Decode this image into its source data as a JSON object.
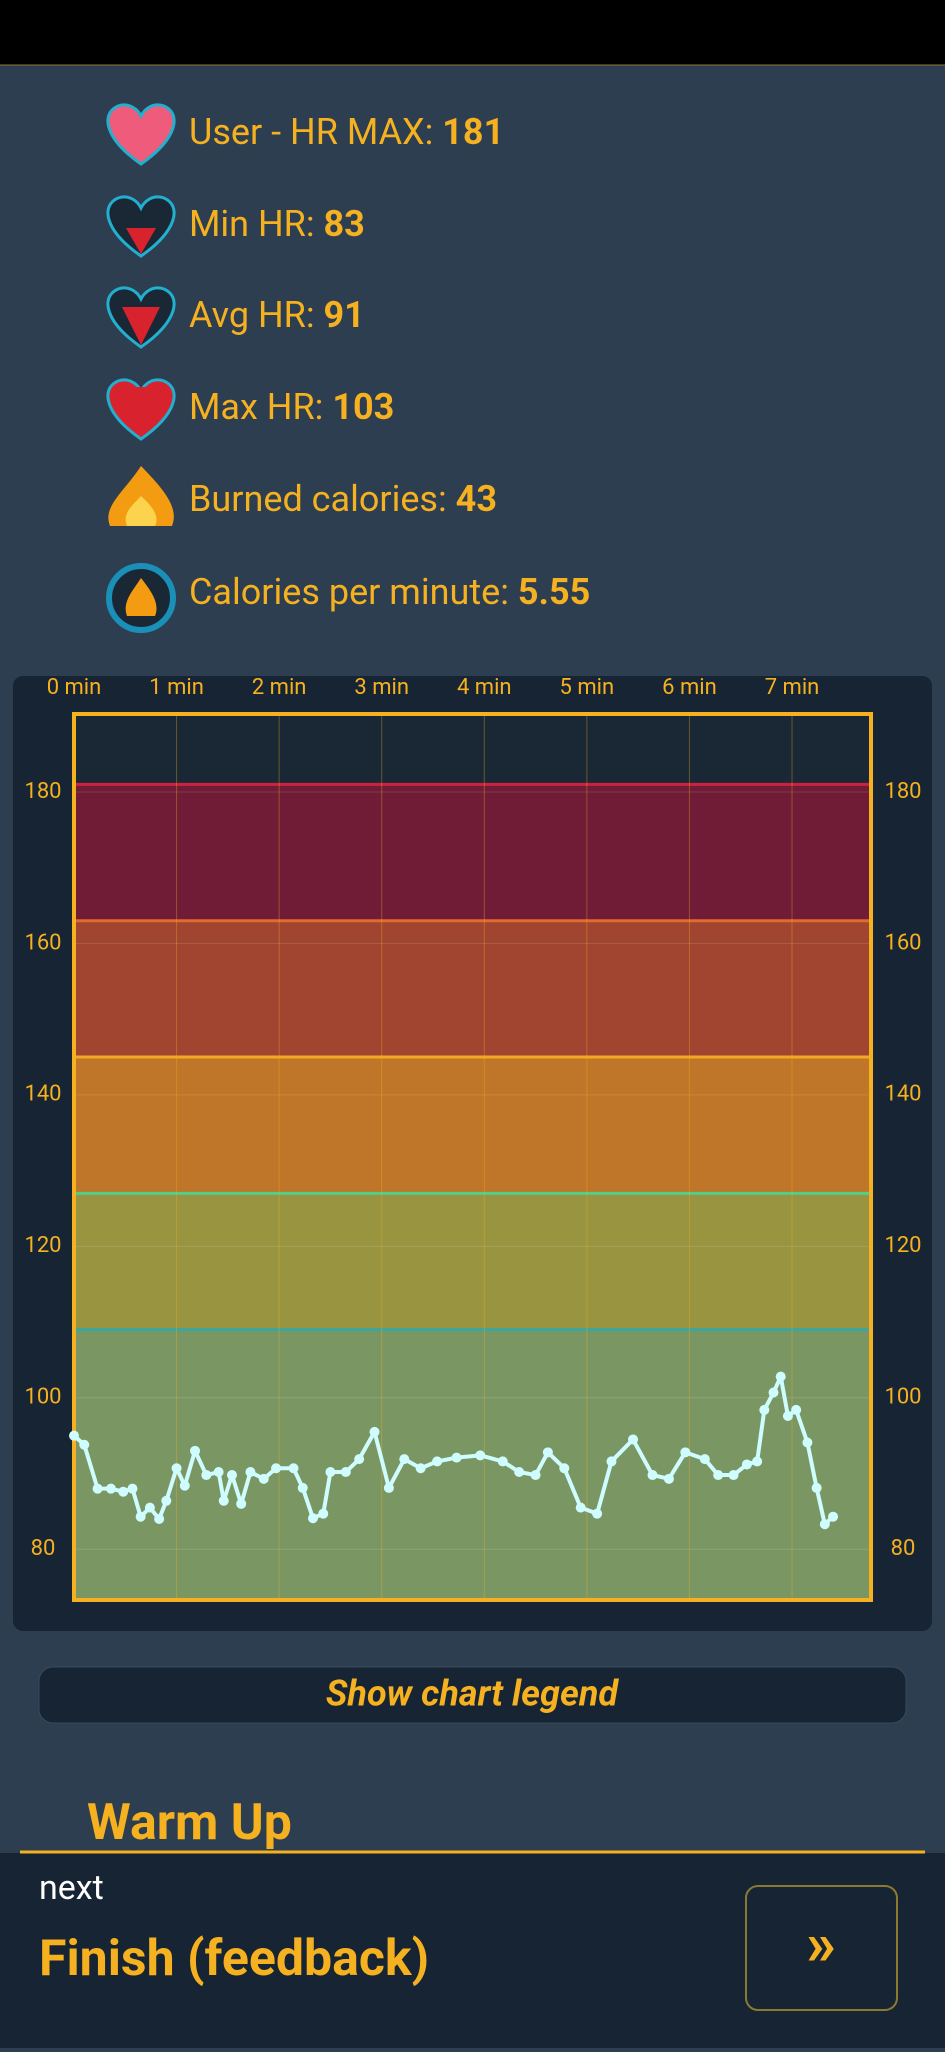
{
  "stats": [
    {
      "label": "User - HR MAX:",
      "value": "181"
    },
    {
      "label": "Min HR:",
      "value": "83"
    },
    {
      "label": "Avg HR:",
      "value": "91"
    },
    {
      "label": "Max HR:",
      "value": "103"
    },
    {
      "label": "Burned calories:",
      "value": "43"
    },
    {
      "label": "Calories per minute:",
      "value": "5.55"
    }
  ],
  "chart_data": {
    "type": "line",
    "xlim": [
      0,
      7.77
    ],
    "xticks": [
      {
        "value": 0,
        "label": "0 min"
      },
      {
        "value": 1,
        "label": "1 min"
      },
      {
        "value": 2,
        "label": "2 min"
      },
      {
        "value": 3,
        "label": "3 min"
      },
      {
        "value": 4,
        "label": "4 min"
      },
      {
        "value": 5,
        "label": "5 min"
      },
      {
        "value": 6,
        "label": "6 min"
      },
      {
        "value": 7,
        "label": "7 min"
      }
    ],
    "ylim": [
      73.3,
      190.3
    ],
    "yticks": [
      80,
      100,
      120,
      140,
      160,
      180
    ],
    "grid": true,
    "zone_bounds": [
      109,
      127,
      145,
      163,
      181
    ],
    "zone_colors": [
      "#7a9763",
      "#999440",
      "#bf7628",
      "#a14530",
      "#701c36",
      "#1a2836"
    ],
    "zone_line_colors": [
      "#3aa6a0",
      "#4fd08a",
      "#f5a623",
      "#e06a30",
      "#d02040"
    ],
    "series": [
      {
        "color": "#cffcff",
        "x": [
          0,
          0.1,
          0.23,
          0.36,
          0.48,
          0.57,
          0.65,
          0.74,
          0.83,
          0.9,
          1.0,
          1.08,
          1.18,
          1.29,
          1.41,
          1.46,
          1.54,
          1.63,
          1.72,
          1.85,
          1.97,
          2.14,
          2.23,
          2.33,
          2.43,
          2.5,
          2.65,
          2.78,
          2.93,
          3.07,
          3.22,
          3.38,
          3.54,
          3.73,
          3.96,
          4.18,
          4.34,
          4.5,
          4.62,
          4.78,
          4.94,
          5.1,
          5.24,
          5.45,
          5.64,
          5.8,
          5.96,
          6.15,
          6.28,
          6.43,
          6.56,
          6.66,
          6.73,
          6.82,
          6.89,
          6.96,
          7.04,
          7.15,
          7.24,
          7.32,
          7.4
        ],
        "values": [
          95,
          93.8,
          88,
          88,
          87.6,
          88,
          84.3,
          85.5,
          84,
          86.4,
          90.7,
          88.4,
          93,
          89.8,
          90.2,
          86.4,
          89.8,
          86,
          90.2,
          89.3,
          90.7,
          90.7,
          88.1,
          84.1,
          84.7,
          90.2,
          90.2,
          91.9,
          95.5,
          88.1,
          91.9,
          90.7,
          91.6,
          92.1,
          92.4,
          91.6,
          90.2,
          89.8,
          92.8,
          90.7,
          85.5,
          84.7,
          91.6,
          94.5,
          89.8,
          89.3,
          92.8,
          91.9,
          89.8,
          89.8,
          91.2,
          91.6,
          98.4,
          100.7,
          102.8,
          97.6,
          98.4,
          94.1,
          88.1,
          83.3,
          84.3
        ]
      }
    ]
  },
  "legend_button": "Show chart legend",
  "phase": "Warm Up",
  "next_label": "next",
  "next_phase": "Finish (feedback)",
  "next_button": "»"
}
